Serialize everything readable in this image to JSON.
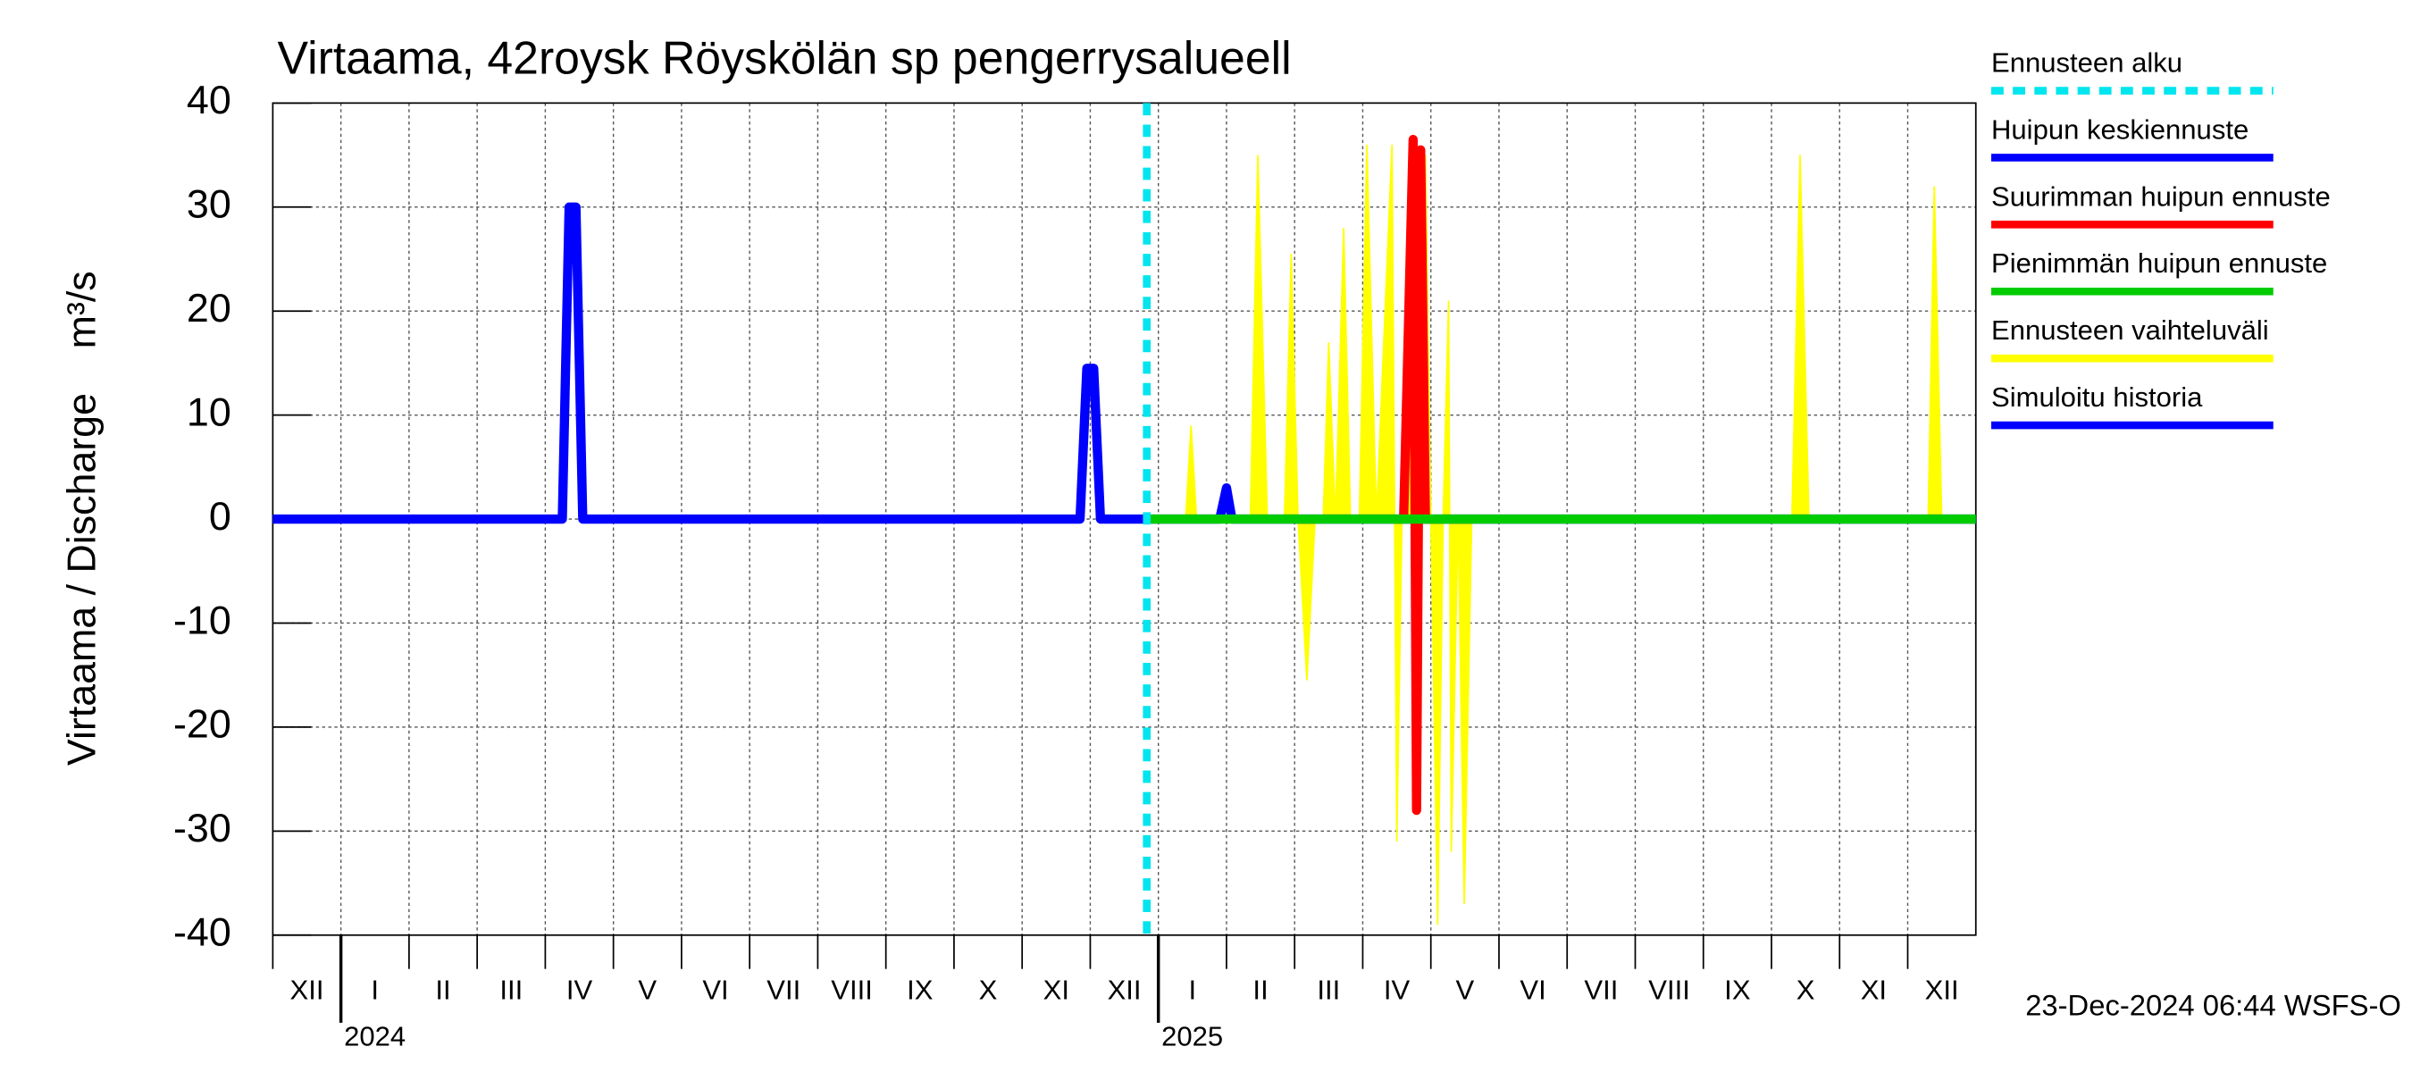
{
  "chart_data": {
    "type": "line",
    "title": "Virtaama, 42roysk Röyskölän sp pengerrysalueell",
    "y_label": "Virtaama / Discharge    m³/s",
    "footer": "23-Dec-2024 06:44 WSFS-O",
    "xlim": [
      0,
      25
    ],
    "ylim": [
      -40,
      40
    ],
    "yticks": [
      -40,
      -30,
      -20,
      -10,
      0,
      10,
      20,
      30,
      40
    ],
    "grid": true,
    "month_labels": [
      "XII",
      "I",
      "II",
      "III",
      "IV",
      "V",
      "VI",
      "VII",
      "VIII",
      "IX",
      "X",
      "XI",
      "XII",
      "I",
      "II",
      "III",
      "IV",
      "V",
      "VI",
      "VII",
      "VIII",
      "IX",
      "X",
      "XI",
      "XII"
    ],
    "year_labels": [
      {
        "label": "2024",
        "at": 1
      },
      {
        "label": "2025",
        "at": 13
      }
    ],
    "forecast_start": {
      "name": "Ennusteen alku",
      "color": "#00e5ee",
      "x": 12.83
    },
    "legend": "right",
    "series": [
      {
        "name": "Huipun keskiennuste",
        "color": "#0000ff",
        "kind": "line",
        "x": [
          12.83,
          13.9,
          14.0,
          14.08,
          14.2,
          25
        ],
        "values": [
          0,
          0,
          3,
          0,
          0,
          0
        ]
      },
      {
        "name": "Suurimman huipun ennuste",
        "color": "#ff0000",
        "kind": "line",
        "x": [
          16.6,
          16.74,
          16.79,
          16.85,
          16.92,
          17.0
        ],
        "values": [
          0,
          36.5,
          -28,
          35.5,
          0,
          0
        ]
      },
      {
        "name": "Pienimmän huipun ennuste",
        "color": "#00cc00",
        "kind": "line",
        "x": [
          12.83,
          25
        ],
        "values": [
          0,
          0
        ]
      },
      {
        "name": "Ennusteen vaihteluväli",
        "color": "#ffff00",
        "kind": "area",
        "x": [
          12.83,
          13.4,
          13.48,
          13.56,
          14.35,
          14.46,
          14.6,
          14.85,
          14.95,
          15.05,
          15.18,
          15.3,
          15.42,
          15.5,
          15.6,
          15.72,
          15.82,
          15.95,
          16.06,
          16.2,
          16.43,
          16.5,
          16.6,
          16.7,
          16.8,
          16.92,
          17.0,
          17.1,
          17.18,
          17.26,
          17.3,
          17.4,
          17.49,
          17.6,
          22.3,
          22.42,
          22.55,
          24.3,
          24.39,
          24.5,
          25
        ],
        "values": [
          0,
          0,
          9,
          0,
          0,
          35,
          0,
          0,
          25.5,
          0,
          -15.5,
          0,
          0,
          17,
          0,
          28,
          0,
          0,
          36,
          0,
          36,
          -31,
          10,
          34,
          -10,
          35,
          0,
          -39,
          0,
          21,
          -32,
          0,
          -37,
          0,
          0,
          35,
          0,
          0,
          32,
          0,
          0
        ]
      },
      {
        "name": "Simuloitu historia",
        "color": "#0000ff",
        "kind": "line",
        "x": [
          0,
          4.25,
          4.35,
          4.45,
          4.55,
          11.85,
          11.95,
          12.05,
          12.15,
          12.83
        ],
        "values": [
          0,
          0,
          30,
          30,
          0,
          0,
          14.5,
          14.5,
          0,
          0
        ]
      }
    ]
  }
}
